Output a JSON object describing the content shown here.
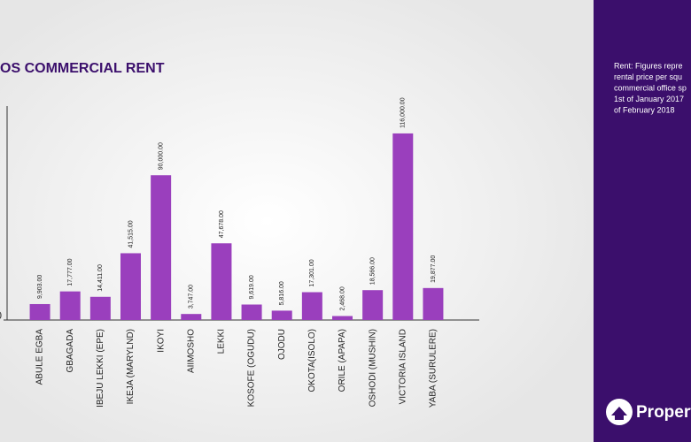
{
  "chart_data": {
    "type": "bar",
    "title": "OS COMMERCIAL RENT",
    "categories": [
      "ABULE EGBA",
      "GBAGADA",
      "IBEJU LEKKI (EPE)",
      "IKEJA (MARYLND)",
      "IKOYI",
      "AIIMOSHO",
      "LEKKI",
      "KOSOFE (OGUDU)",
      "OJODU",
      "OKOTA(ISOLO)",
      "ORILE  (APAPA)",
      "OSHODI (MUSHIN)",
      "VICTORIA ISLAND",
      "YABA (SURULERE)"
    ],
    "values": [
      9903,
      17777,
      14411,
      41515,
      90000,
      3747,
      47678,
      9619,
      5816,
      17301,
      2468,
      18566,
      116000,
      19877
    ],
    "value_labels": [
      "9,903.00",
      "17,777.00",
      "14,411.00",
      "41,515.00",
      "90,000.00",
      "3,747.00",
      "47,678.00",
      "9,619.00",
      "5,816.00",
      "17,301.00",
      "2,468.00",
      "18,566.00",
      "116,000.00",
      "19,877.00"
    ],
    "color": "#9a3fbd",
    "ylim": [
      0,
      133000
    ],
    "yticks": [
      0
    ]
  },
  "side_panel": {
    "lines": [
      "Rent: Figures repre",
      "rental price per squ",
      "commercial office sp",
      "1st of January 2017",
      "of February 2018"
    ],
    "logo": "Propert"
  }
}
